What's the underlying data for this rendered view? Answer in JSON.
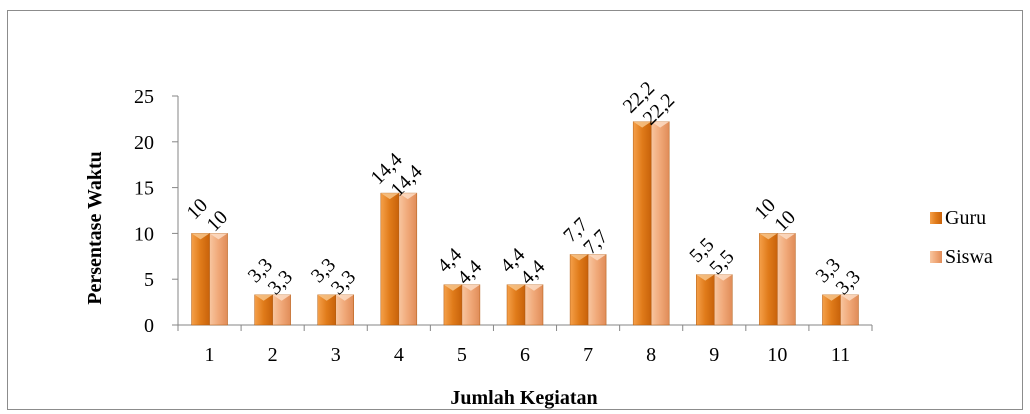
{
  "chart_data": {
    "type": "bar",
    "title": "",
    "xlabel": "Jumlah Kegiatan",
    "ylabel": "Persentase Waktu",
    "categories": [
      "1",
      "2",
      "3",
      "4",
      "5",
      "6",
      "7",
      "8",
      "9",
      "10",
      "11"
    ],
    "series": [
      {
        "name": "Guru",
        "values": [
          10,
          3.3,
          3.3,
          14.4,
          4.4,
          4.4,
          7.7,
          22.2,
          5.5,
          10,
          3.3
        ],
        "labels": [
          "10",
          "3,3",
          "3,3",
          "14,4",
          "4,4",
          "4,4",
          "7,7",
          "22,2",
          "5,5",
          "10",
          "3,3"
        ],
        "color": "#e07b1a"
      },
      {
        "name": "Siswa",
        "values": [
          10,
          3.3,
          3.3,
          14.4,
          4.4,
          4.4,
          7.7,
          22.2,
          5.5,
          10,
          3.3
        ],
        "labels": [
          "10",
          "3,3",
          "3,3",
          "14,4",
          "4,4",
          "4,4",
          "7,7",
          "22,2",
          "5,5",
          "10",
          "3,3"
        ],
        "color": "#f0a878"
      }
    ],
    "ylim": [
      0,
      25
    ],
    "yticks": [
      "0",
      "5",
      "10",
      "15",
      "20",
      "25"
    ],
    "grid": false,
    "legend_position": "right"
  }
}
